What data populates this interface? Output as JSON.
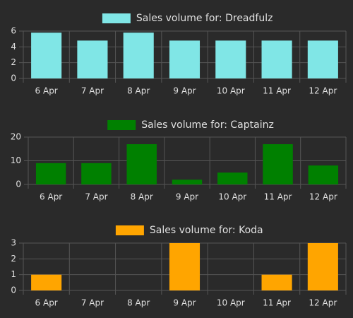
{
  "chart_data": [
    {
      "type": "bar",
      "categories": [
        "6 Apr",
        "7 Apr",
        "8 Apr",
        "9 Apr",
        "10 Apr",
        "11 Apr",
        "12 Apr"
      ],
      "series": [
        {
          "name": "Sales volume for: Dreadfulz",
          "color": "#80e6e6",
          "values": [
            5.8,
            4.8,
            5.8,
            4.8,
            4.8,
            4.8,
            4.8
          ]
        }
      ],
      "ylim": [
        0,
        6
      ],
      "yticks": [
        0,
        2,
        4,
        6
      ],
      "grid": true,
      "legend": "top"
    },
    {
      "type": "bar",
      "categories": [
        "6 Apr",
        "7 Apr",
        "8 Apr",
        "9 Apr",
        "10 Apr",
        "11 Apr",
        "12 Apr"
      ],
      "series": [
        {
          "name": "Sales volume for: Captainz",
          "color": "#008000",
          "values": [
            9,
            9,
            17,
            2,
            5,
            17,
            8
          ]
        }
      ],
      "ylim": [
        0,
        20
      ],
      "yticks": [
        0,
        10,
        20
      ],
      "grid": true,
      "legend": "top"
    },
    {
      "type": "bar",
      "categories": [
        "6 Apr",
        "7 Apr",
        "8 Apr",
        "9 Apr",
        "10 Apr",
        "11 Apr",
        "12 Apr"
      ],
      "series": [
        {
          "name": "Sales volume for: Koda",
          "color": "#ffa500",
          "values": [
            1,
            0,
            0,
            3,
            0,
            1,
            3
          ]
        }
      ],
      "ylim": [
        0,
        3
      ],
      "yticks": [
        0,
        1,
        2,
        3
      ],
      "grid": true,
      "legend": "top"
    }
  ]
}
